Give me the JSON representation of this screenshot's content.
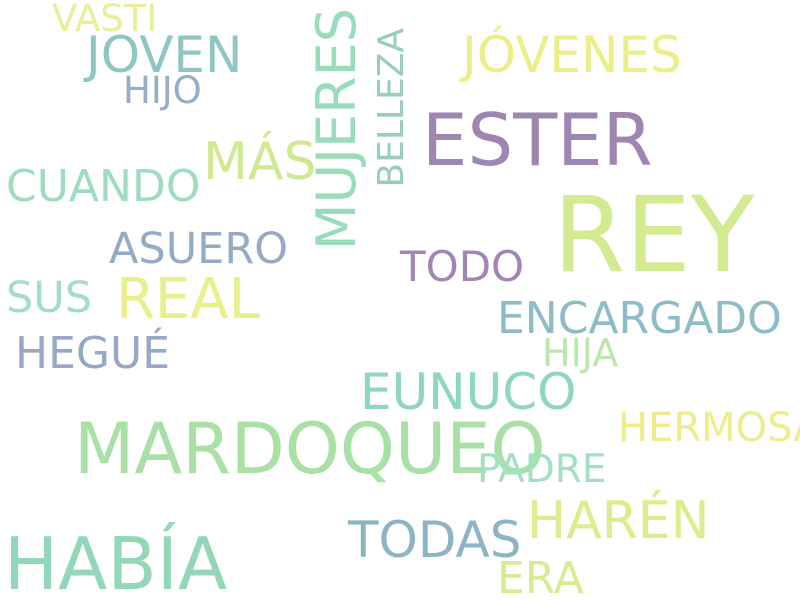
{
  "palette": {
    "purple": "#9b85b0",
    "lime": "#cde890",
    "green": "#9ad8a8",
    "teal": "#8dc2bd",
    "mint": "#8fd6bf",
    "yellow": "#ecec86",
    "slate": "#93a9c4",
    "bluegreen": "#8fb8c4"
  },
  "words": [
    {
      "text": "VASTI",
      "color": "#e8ee9a"
    },
    {
      "text": "JOVEN",
      "color": "#8fc5c2"
    },
    {
      "text": "HIJO",
      "color": "#95aec6"
    },
    {
      "text": "MUJERES",
      "color": "#98dcbc"
    },
    {
      "text": "BELLEZA",
      "color": "#98cdbc"
    },
    {
      "text": "JÓVENES",
      "color": "#ecef88"
    },
    {
      "text": "ESTER",
      "color": "#9e86b1"
    },
    {
      "text": "MÁS",
      "color": "#cfe892"
    },
    {
      "text": "CUANDO",
      "color": "#9dddbe"
    },
    {
      "text": "REY",
      "color": "#d2ea90"
    },
    {
      "text": "ASUERO",
      "color": "#95aac4"
    },
    {
      "text": "TODO",
      "color": "#a285b3"
    },
    {
      "text": "SUS",
      "color": "#a2ddc6"
    },
    {
      "text": "REAL",
      "color": "#e8f08c"
    },
    {
      "text": "ENCARGADO",
      "color": "#8ebcc6"
    },
    {
      "text": "HEGUÉ",
      "color": "#97a8c4"
    },
    {
      "text": "HIJA",
      "color": "#bde6ac"
    },
    {
      "text": "EUNUCO",
      "color": "#8fd6c2"
    },
    {
      "text": "MARDOQUEO",
      "color": "#a8e0a6"
    },
    {
      "text": "HERMOSA",
      "color": "#eeec8c"
    },
    {
      "text": "PADRE",
      "color": "#a3dfc3"
    },
    {
      "text": "HABÍA",
      "color": "#92d8b8"
    },
    {
      "text": "TODAS",
      "color": "#8db4c4"
    },
    {
      "text": "HARÉN",
      "color": "#dbed8c"
    },
    {
      "text": "ERA",
      "color": "#d5ec92"
    }
  ]
}
